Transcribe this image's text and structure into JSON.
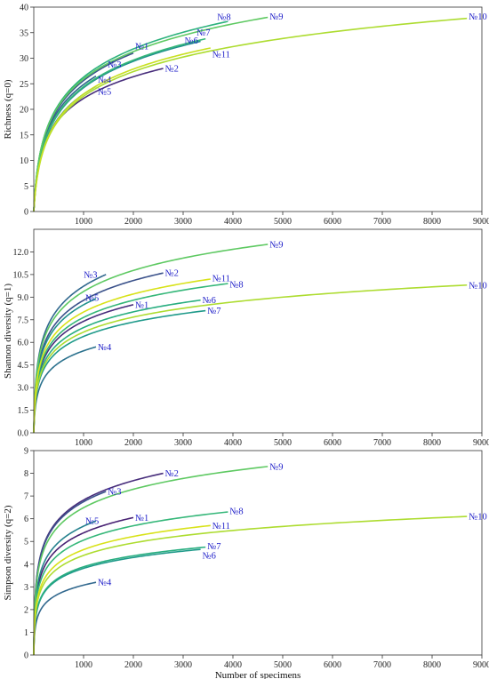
{
  "chart_data": [
    {
      "type": "line",
      "ylabel": "Richness (q=0)",
      "xlabel": "",
      "xlim": [
        0,
        9000
      ],
      "ylim": [
        0,
        40
      ],
      "xticks": [
        "1000",
        "2000",
        "3000",
        "4000",
        "5000",
        "6000",
        "7000",
        "8000",
        "9000"
      ],
      "xtick_values": [
        1000,
        2000,
        3000,
        4000,
        5000,
        6000,
        7000,
        8000,
        9000
      ],
      "yticks": [
        "0",
        "5",
        "10",
        "15",
        "20",
        "25",
        "30",
        "35",
        "40"
      ],
      "ytick_values": [
        0,
        5,
        10,
        15,
        20,
        25,
        30,
        35,
        40
      ],
      "series": [
        {
          "name": "№1",
          "n": 2000,
          "final": 31.0,
          "shape": 0.42,
          "color": "#3b528b"
        },
        {
          "name": "№2",
          "n": 2600,
          "final": 28.0,
          "shape": 0.3,
          "color": "#472d7b"
        },
        {
          "name": "№3",
          "n": 1450,
          "final": 28.8,
          "shape": 0.4,
          "color": "#1f9a8a"
        },
        {
          "name": "№4",
          "n": 1250,
          "final": 26.5,
          "shape": 0.4,
          "color": "#31688e"
        },
        {
          "name": "№5",
          "n": 1250,
          "final": 24.5,
          "shape": 0.4,
          "color": "#26828e"
        },
        {
          "name": "№6",
          "n": 3350,
          "final": 33.3,
          "shape": 0.45,
          "color": "#21918c"
        },
        {
          "name": "№7",
          "n": 3450,
          "final": 33.8,
          "shape": 0.45,
          "color": "#35b779"
        },
        {
          "name": "№8",
          "n": 3900,
          "final": 37.2,
          "shape": 0.42,
          "color": "#2db27d"
        },
        {
          "name": "№9",
          "n": 4700,
          "final": 38.0,
          "shape": 0.4,
          "color": "#5ec962"
        },
        {
          "name": "№10",
          "n": 8700,
          "final": 37.8,
          "shape": 0.45,
          "color": "#addc30"
        },
        {
          "name": "№11",
          "n": 3550,
          "final": 32.0,
          "shape": 0.45,
          "color": "#c8e020"
        }
      ]
    },
    {
      "type": "line",
      "ylabel": "Shannon diversity (q=1)",
      "xlabel": "",
      "xlim": [
        0,
        9000
      ],
      "ylim": [
        0,
        13.5
      ],
      "xticks": [
        "1000",
        "2000",
        "3000",
        "4000",
        "5000",
        "6000",
        "7000",
        "8000",
        "9000"
      ],
      "xtick_values": [
        1000,
        2000,
        3000,
        4000,
        5000,
        6000,
        7000,
        8000,
        9000
      ],
      "yticks": [
        "0.0",
        "1.5",
        "3.0",
        "4.5",
        "6.0",
        "7.5",
        "9.0",
        "10.5",
        "12.0"
      ],
      "ytick_values": [
        0,
        1.5,
        3,
        4.5,
        6,
        7.5,
        9,
        10.5,
        12
      ],
      "series": [
        {
          "name": "№1",
          "n": 2000,
          "final": 8.5,
          "shape": 0.1,
          "color": "#472d7b"
        },
        {
          "name": "№2",
          "n": 2600,
          "final": 10.6,
          "shape": 0.1,
          "color": "#3b528b"
        },
        {
          "name": "№3",
          "n": 1450,
          "final": 10.5,
          "shape": 0.1,
          "color": "#31688e"
        },
        {
          "name": "№4",
          "n": 1250,
          "final": 5.7,
          "shape": 0.1,
          "color": "#2c728e"
        },
        {
          "name": "№5",
          "n": 1250,
          "final": 8.9,
          "shape": 0.1,
          "color": "#21918c"
        },
        {
          "name": "№6",
          "n": 3350,
          "final": 8.8,
          "shape": 0.1,
          "color": "#28ae80"
        },
        {
          "name": "№7",
          "n": 3450,
          "final": 8.1,
          "shape": 0.1,
          "color": "#1f9a8a"
        },
        {
          "name": "№8",
          "n": 3900,
          "final": 9.9,
          "shape": 0.1,
          "color": "#35b779"
        },
        {
          "name": "№9",
          "n": 4700,
          "final": 12.5,
          "shape": 0.1,
          "color": "#5ec962"
        },
        {
          "name": "№10",
          "n": 8700,
          "final": 9.8,
          "shape": 0.1,
          "color": "#addc30"
        },
        {
          "name": "№11",
          "n": 3550,
          "final": 10.2,
          "shape": 0.1,
          "color": "#d8e219"
        }
      ]
    },
    {
      "type": "line",
      "ylabel": "Simpson diversity (q=2)",
      "xlabel": "Number of specimens",
      "xlim": [
        0,
        9000
      ],
      "ylim": [
        0,
        9
      ],
      "xticks": [
        "1000",
        "2000",
        "3000",
        "4000",
        "5000",
        "6000",
        "7000",
        "8000",
        "9000"
      ],
      "xtick_values": [
        1000,
        2000,
        3000,
        4000,
        5000,
        6000,
        7000,
        8000,
        9000
      ],
      "yticks": [
        "0",
        "1",
        "2",
        "3",
        "4",
        "5",
        "6",
        "7",
        "8",
        "9"
      ],
      "ytick_values": [
        0,
        1,
        2,
        3,
        4,
        5,
        6,
        7,
        8,
        9
      ],
      "series": [
        {
          "name": "№1",
          "n": 2000,
          "final": 6.05,
          "shape": 0.04,
          "color": "#482173"
        },
        {
          "name": "№2",
          "n": 2600,
          "final": 8.0,
          "shape": 0.04,
          "color": "#472d7b"
        },
        {
          "name": "№3",
          "n": 1450,
          "final": 7.2,
          "shape": 0.04,
          "color": "#3b528b"
        },
        {
          "name": "№4",
          "n": 1250,
          "final": 3.2,
          "shape": 0.04,
          "color": "#31688e"
        },
        {
          "name": "№5",
          "n": 1250,
          "final": 5.9,
          "shape": 0.04,
          "color": "#26828e"
        },
        {
          "name": "№6",
          "n": 3350,
          "final": 4.65,
          "shape": 0.04,
          "color": "#1f9a8a"
        },
        {
          "name": "№7",
          "n": 3450,
          "final": 4.75,
          "shape": 0.04,
          "color": "#28ae80"
        },
        {
          "name": "№8",
          "n": 3900,
          "final": 6.3,
          "shape": 0.04,
          "color": "#35b779"
        },
        {
          "name": "№9",
          "n": 4700,
          "final": 8.3,
          "shape": 0.04,
          "color": "#5ec962"
        },
        {
          "name": "№10",
          "n": 8700,
          "final": 6.1,
          "shape": 0.04,
          "color": "#addc30"
        },
        {
          "name": "№11",
          "n": 3550,
          "final": 5.7,
          "shape": 0.04,
          "color": "#d8e219"
        }
      ]
    }
  ]
}
